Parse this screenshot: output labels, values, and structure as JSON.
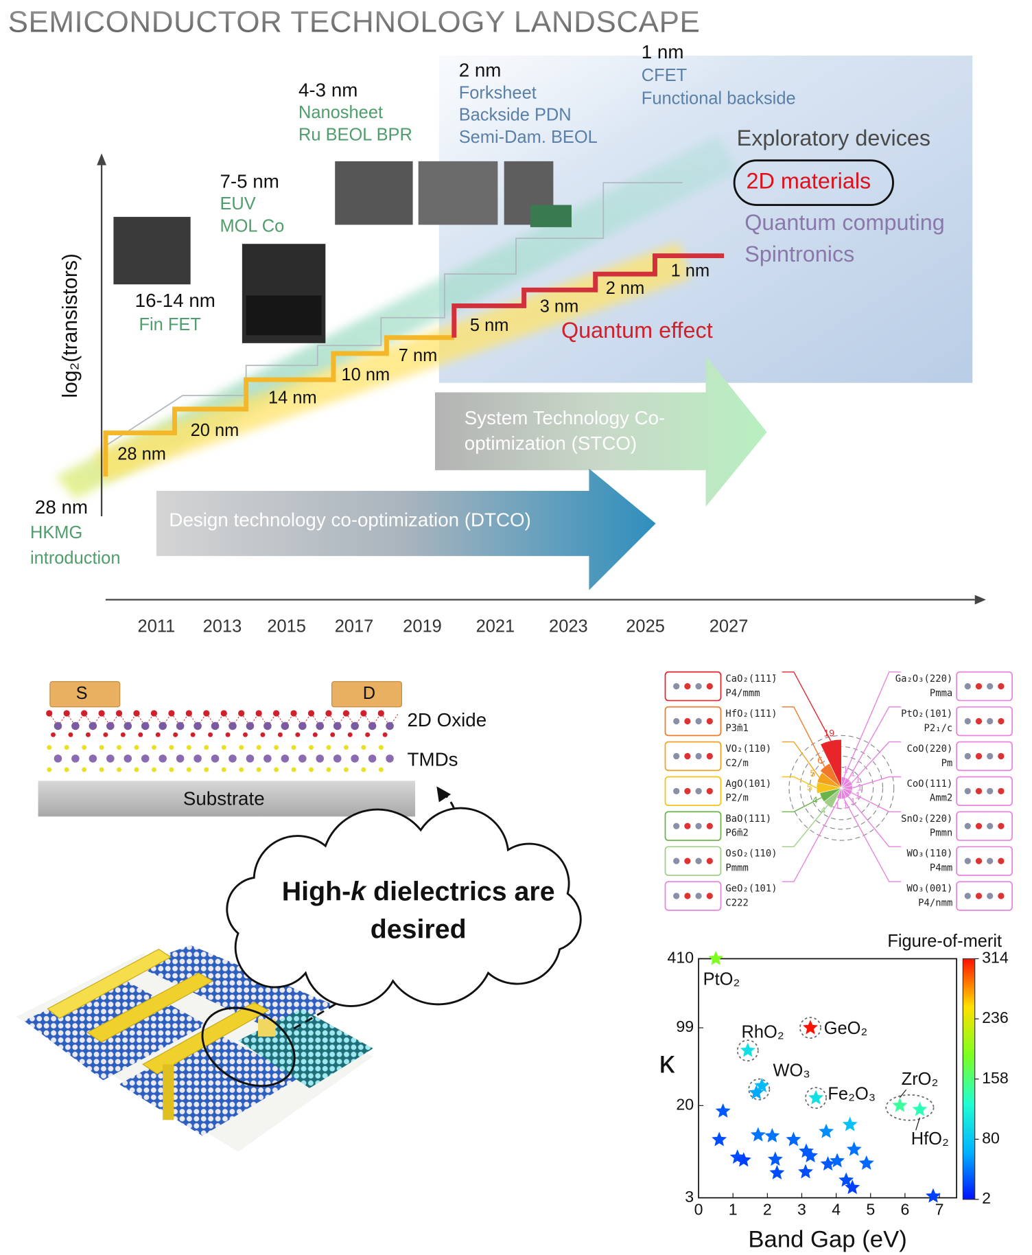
{
  "title": "SEMICONDUCTOR TECHNOLOGY LANDSCAPE",
  "roadmap": {
    "y_axis_label": "log₂(transistors)",
    "years": [
      "2011",
      "2013",
      "2015",
      "2017",
      "2019",
      "2021",
      "2023",
      "2025",
      "2027"
    ],
    "nodes": [
      "28 nm",
      "20 nm",
      "14 nm",
      "10 nm",
      "7 nm",
      "5 nm",
      "3 nm",
      "2 nm",
      "1 nm"
    ],
    "milestones": [
      {
        "node": "28 nm",
        "features": [
          "HKMG",
          "introduction"
        ]
      },
      {
        "node": "16-14 nm",
        "features": [
          "Fin FET"
        ]
      },
      {
        "node": "7-5 nm",
        "features": [
          "EUV",
          "MOL Co"
        ]
      },
      {
        "node": "4-3 nm",
        "features": [
          "Nanosheet",
          "Ru BEOL BPR"
        ]
      },
      {
        "node": "2 nm",
        "features": [
          "Forksheet",
          "Backside PDN",
          "Semi-Dam. BEOL"
        ]
      },
      {
        "node": "1 nm",
        "features": [
          "CFET",
          "Functional backside"
        ]
      }
    ],
    "exploratory": {
      "heading": "Exploratory devices",
      "items": [
        "2D materials",
        "Quantum computing",
        "Spintronics"
      ]
    },
    "quantum_effect": "Quantum effect",
    "dtco": "Design technology co-optimization (DTCO)",
    "stco": [
      "System Technology Co-",
      "optimization (STCO)"
    ]
  },
  "device": {
    "source": "S",
    "drain": "D",
    "layers": [
      "2D Oxide",
      "TMDs"
    ],
    "substrate": "Substrate",
    "callout": [
      "High-",
      "k",
      " dielectrics are",
      "desired"
    ]
  },
  "polar": {
    "left": [
      {
        "formula": "CaO₂(111̄)",
        "space_group": "P4/mmm",
        "count": 19,
        "color": "#e8262a"
      },
      {
        "formula": "HfO₂(1̄11)",
        "space_group": "P3̄m1",
        "count": 6,
        "color": "#f07a2a"
      },
      {
        "formula": "VO₂(110)",
        "space_group": "C2/m",
        "count": 5,
        "color": "#f4a21e"
      },
      {
        "formula": "AgO(101)",
        "space_group": "P2/m",
        "count": 5,
        "color": "#f7c21a"
      },
      {
        "formula": "BaO(111)",
        "space_group": "P6̄m2",
        "count": 4,
        "color": "#6cb24a"
      },
      {
        "formula": "OsO₂(110)",
        "space_group": "Pmmm",
        "count": 4,
        "color": "#9fcf86"
      },
      {
        "formula": "GeO₂(101)",
        "space_group": "C222",
        "count": 1,
        "color": "#e883e0"
      }
    ],
    "right": [
      {
        "formula": "Ga₂O₃(220)",
        "space_group": "Pmma",
        "count": 1,
        "color": "#e883e0"
      },
      {
        "formula": "PtO₂(101)",
        "space_group": "P2₁/c",
        "count": 1,
        "color": "#e883e0"
      },
      {
        "formula": "CoO(220)",
        "space_group": "Pm",
        "count": 1,
        "color": "#e883e0"
      },
      {
        "formula": "CoO(111)",
        "space_group": "Amm2",
        "count": 1,
        "color": "#e883e0"
      },
      {
        "formula": "SnO₂(220)",
        "space_group": "Pmmn",
        "count": 1,
        "color": "#e883e0"
      },
      {
        "formula": "WO₃(110)",
        "space_group": "P4mm",
        "count": 1,
        "color": "#e883e0"
      },
      {
        "formula": "WO₃(001)",
        "space_group": "P4/nmm",
        "count": 1,
        "color": "#e883e0"
      }
    ]
  },
  "chart_data": {
    "type": "scatter",
    "x_label": "Band Gap (eV)",
    "y_label": "κ",
    "x": [
      0.5,
      3.25,
      1.43,
      1.84,
      1.68,
      3.41,
      5.85,
      6.43,
      0.71,
      0.6,
      1.13,
      1.31,
      1.73,
      2.14,
      2.23,
      2.28,
      2.76,
      3.13,
      3.25,
      3.11,
      3.71,
      4.4,
      3.76,
      4.03,
      4.52,
      4.29,
      4.47,
      4.88,
      6.82
    ],
    "values": [
      410,
      99,
      62,
      30,
      26,
      23.4,
      20,
      18.4,
      17.8,
      9.9,
      6.9,
      6.5,
      10.9,
      10.7,
      6.6,
      5.0,
      9.9,
      7.8,
      7.1,
      5.1,
      11.7,
      13.5,
      6.0,
      6.4,
      8.1,
      4.3,
      3.7,
      6.1,
      3.1
    ],
    "fom": [
      190,
      314,
      100,
      70,
      60,
      100,
      145,
      135,
      30,
      25,
      25,
      20,
      40,
      40,
      30,
      25,
      35,
      30,
      30,
      25,
      50,
      75,
      30,
      35,
      40,
      25,
      20,
      35,
      20
    ],
    "labels": [
      "PtO₂",
      "GeO₂",
      "RhO₂",
      "WO₃",
      null,
      "Fe₂O₃",
      "ZrO₂",
      "HfO₂",
      null,
      null,
      null,
      null,
      null,
      null,
      null,
      null,
      null,
      null,
      null,
      null,
      null,
      null,
      null,
      null,
      null,
      null,
      null,
      null,
      null
    ],
    "xlim": [
      0,
      7.5
    ],
    "xticks": [
      0,
      1,
      2,
      3,
      4,
      5,
      6,
      7
    ],
    "ylim": [
      3,
      410
    ],
    "yticks": [
      3,
      20,
      99,
      410
    ],
    "log_y": true,
    "colorbar": {
      "label": "Figure-of-merit",
      "lim": [
        2,
        314
      ],
      "ticks": [
        2,
        80,
        158,
        236,
        314
      ],
      "colormap": [
        "#0010ff",
        "#00b4ff",
        "#20ffd0",
        "#7cff20",
        "#ffe000",
        "#ff1000"
      ]
    }
  }
}
